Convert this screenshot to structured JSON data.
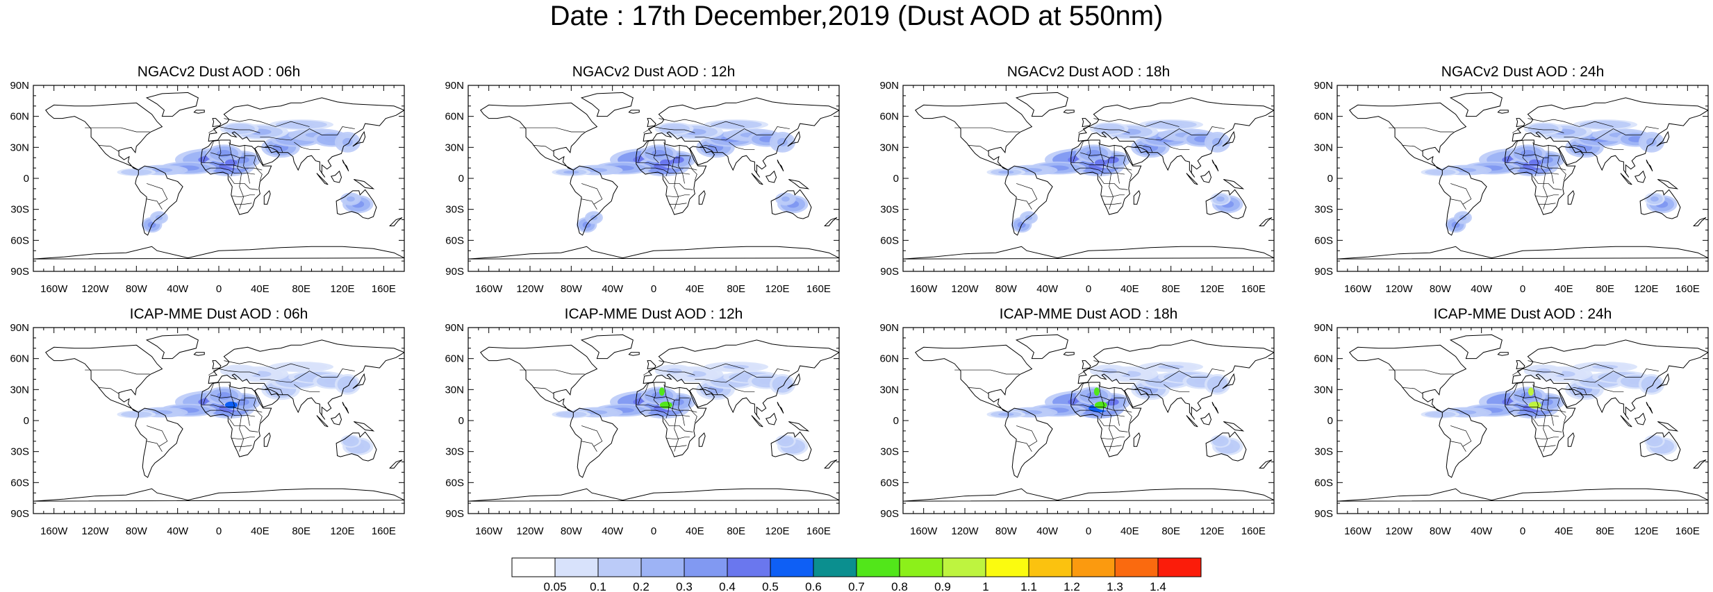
{
  "title": "Date : 17th December,2019 (Dust AOD at 550nm)",
  "lat_labels": [
    "90N",
    "60N",
    "30N",
    "0",
    "30S",
    "60S",
    "90S"
  ],
  "lon_labels": [
    "160W",
    "120W",
    "80W",
    "40W",
    "0",
    "40E",
    "80E",
    "120E",
    "160E"
  ],
  "panels": [
    {
      "title": "NGACv2 Dust AOD : 06h",
      "model": "NGACv2",
      "hour": 6,
      "africa": 0.42,
      "asia": 0.32,
      "australia": 0.32,
      "samerica": 0.32,
      "peak": 0.45
    },
    {
      "title": "NGACv2 Dust AOD : 12h",
      "model": "NGACv2",
      "hour": 12,
      "africa": 0.45,
      "asia": 0.34,
      "australia": 0.32,
      "samerica": 0.32,
      "peak": 0.48
    },
    {
      "title": "NGACv2 Dust AOD : 18h",
      "model": "NGACv2",
      "hour": 18,
      "africa": 0.45,
      "asia": 0.34,
      "australia": 0.3,
      "samerica": 0.32,
      "peak": 0.48
    },
    {
      "title": "NGACv2 Dust AOD : 24h",
      "model": "NGACv2",
      "hour": 24,
      "africa": 0.42,
      "asia": 0.34,
      "australia": 0.3,
      "samerica": 0.32,
      "peak": 0.45
    },
    {
      "title": "ICAP-MME Dust AOD : 06h",
      "model": "ICAP-MME",
      "hour": 6,
      "africa": 0.42,
      "asia": 0.18,
      "australia": 0.18,
      "samerica": 0,
      "peak": 0.5
    },
    {
      "title": "ICAP-MME Dust AOD : 12h",
      "model": "ICAP-MME",
      "hour": 12,
      "africa": 0.44,
      "asia": 0.2,
      "australia": 0.18,
      "samerica": 0,
      "peak": 0.75
    },
    {
      "title": "ICAP-MME Dust AOD : 18h",
      "model": "ICAP-MME",
      "hour": 18,
      "africa": 0.46,
      "asia": 0.2,
      "australia": 0.18,
      "samerica": 0,
      "peak": 0.75
    },
    {
      "title": "ICAP-MME Dust AOD : 24h",
      "model": "ICAP-MME",
      "hour": 24,
      "africa": 0.44,
      "asia": 0.2,
      "australia": 0.18,
      "samerica": 0,
      "peak": 0.95
    }
  ],
  "colorbar": {
    "colors": [
      "#ffffff",
      "#d8e2fb",
      "#bbcbf8",
      "#9db3f5",
      "#8199f2",
      "#6a77ee",
      "#0e5ff5",
      "#0b8f8f",
      "#52e61a",
      "#8cf01a",
      "#bef43f",
      "#fbfb0f",
      "#fbc20f",
      "#fb9a0f",
      "#fa6a0f",
      "#fb1c0a"
    ],
    "labels": [
      "0.05",
      "0.1",
      "0.2",
      "0.3",
      "0.4",
      "0.5",
      "0.6",
      "0.7",
      "0.8",
      "0.9",
      "1",
      "1.1",
      "1.2",
      "1.3",
      "1.4"
    ]
  }
}
